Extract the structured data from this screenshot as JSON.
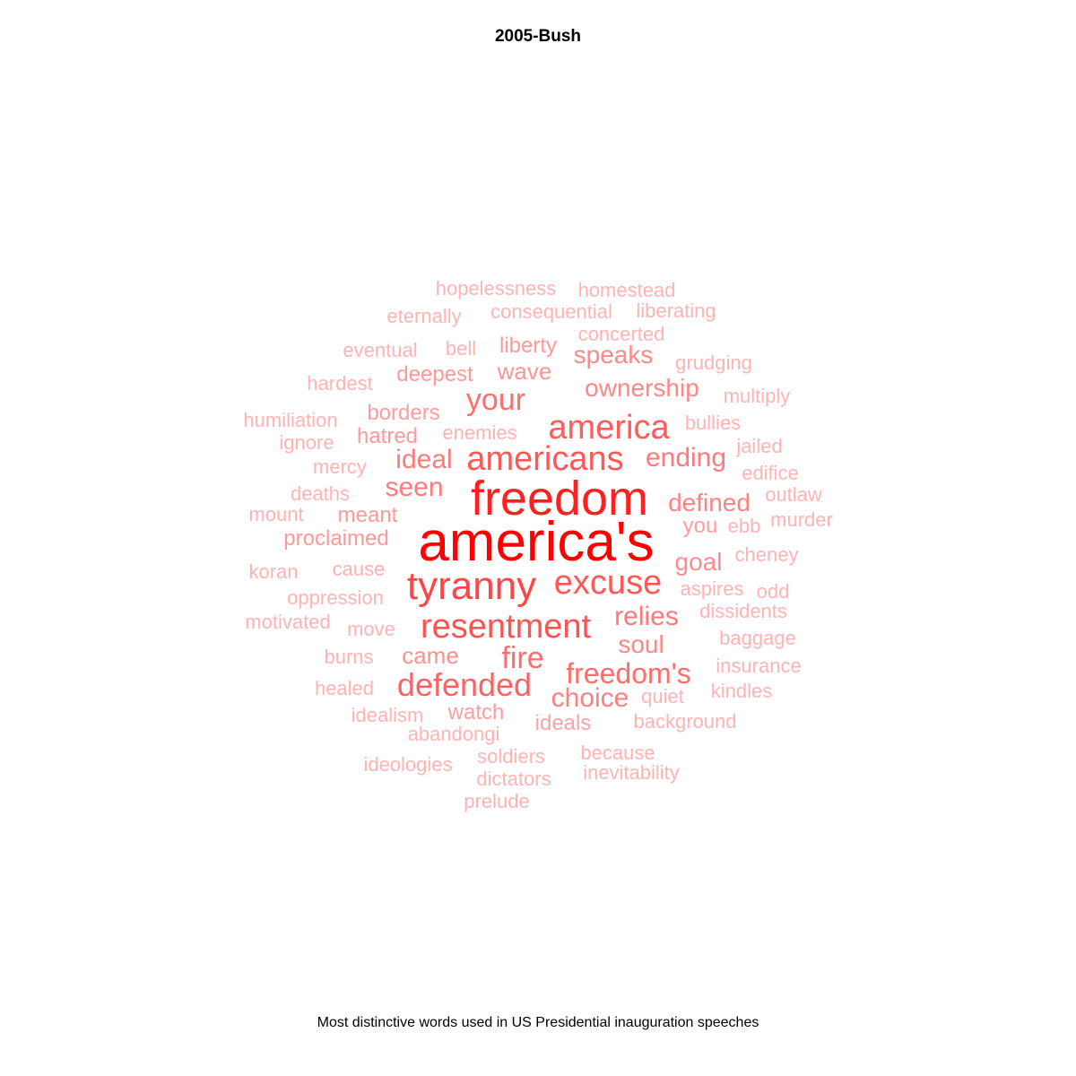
{
  "title": "2005-Bush",
  "caption": "Most distinctive words used in US Presidential inauguration speeches",
  "chart_data": {
    "type": "wordcloud",
    "title": "2005-Bush",
    "caption": "Most distinctive words used in US Presidential inauguration speeches",
    "color_scale": [
      "#ffb3b3",
      "#ff0000"
    ],
    "words": [
      {
        "text": "america's",
        "weight": 1.0
      },
      {
        "text": "freedom",
        "weight": 0.86
      },
      {
        "text": "tyranny",
        "weight": 0.68
      },
      {
        "text": "resentment",
        "weight": 0.62
      },
      {
        "text": "americans",
        "weight": 0.6
      },
      {
        "text": "excuse",
        "weight": 0.6
      },
      {
        "text": "america",
        "weight": 0.58
      },
      {
        "text": "defended",
        "weight": 0.55
      },
      {
        "text": "your",
        "weight": 0.5
      },
      {
        "text": "freedom's",
        "weight": 0.5
      },
      {
        "text": "fire",
        "weight": 0.5
      },
      {
        "text": "relies",
        "weight": 0.45
      },
      {
        "text": "ideal",
        "weight": 0.44
      },
      {
        "text": "ending",
        "weight": 0.44
      },
      {
        "text": "seen",
        "weight": 0.44
      },
      {
        "text": "choice",
        "weight": 0.42
      },
      {
        "text": "defined",
        "weight": 0.4
      },
      {
        "text": "ownership",
        "weight": 0.38
      },
      {
        "text": "speaks",
        "weight": 0.38
      },
      {
        "text": "soul",
        "weight": 0.38
      },
      {
        "text": "goal",
        "weight": 0.36
      },
      {
        "text": "came",
        "weight": 0.34
      },
      {
        "text": "wave",
        "weight": 0.32
      },
      {
        "text": "deepest",
        "weight": 0.3
      },
      {
        "text": "liberty",
        "weight": 0.3
      },
      {
        "text": "proclaimed",
        "weight": 0.3
      },
      {
        "text": "meant",
        "weight": 0.3
      },
      {
        "text": "hatred",
        "weight": 0.3
      },
      {
        "text": "borders",
        "weight": 0.28
      },
      {
        "text": "you",
        "weight": 0.28
      },
      {
        "text": "watch",
        "weight": 0.28
      },
      {
        "text": "ideals",
        "weight": 0.26
      },
      {
        "text": "hopelessness",
        "weight": 0.18
      },
      {
        "text": "homestead",
        "weight": 0.18
      },
      {
        "text": "eternally",
        "weight": 0.18
      },
      {
        "text": "consequential",
        "weight": 0.18
      },
      {
        "text": "liberating",
        "weight": 0.18
      },
      {
        "text": "concerted",
        "weight": 0.18
      },
      {
        "text": "eventual",
        "weight": 0.18
      },
      {
        "text": "bell",
        "weight": 0.18
      },
      {
        "text": "grudging",
        "weight": 0.18
      },
      {
        "text": "hardest",
        "weight": 0.18
      },
      {
        "text": "multiply",
        "weight": 0.18
      },
      {
        "text": "humiliation",
        "weight": 0.18
      },
      {
        "text": "bullies",
        "weight": 0.18
      },
      {
        "text": "ignore",
        "weight": 0.18
      },
      {
        "text": "enemies",
        "weight": 0.18
      },
      {
        "text": "jailed",
        "weight": 0.18
      },
      {
        "text": "mercy",
        "weight": 0.18
      },
      {
        "text": "edifice",
        "weight": 0.18
      },
      {
        "text": "deaths",
        "weight": 0.18
      },
      {
        "text": "outlaw",
        "weight": 0.18
      },
      {
        "text": "mount",
        "weight": 0.18
      },
      {
        "text": "ebb",
        "weight": 0.18
      },
      {
        "text": "murder",
        "weight": 0.18
      },
      {
        "text": "cheney",
        "weight": 0.18
      },
      {
        "text": "koran",
        "weight": 0.18
      },
      {
        "text": "cause",
        "weight": 0.2
      },
      {
        "text": "aspires",
        "weight": 0.18
      },
      {
        "text": "odd",
        "weight": 0.18
      },
      {
        "text": "oppression",
        "weight": 0.18
      },
      {
        "text": "dissidents",
        "weight": 0.18
      },
      {
        "text": "motivated",
        "weight": 0.18
      },
      {
        "text": "move",
        "weight": 0.18
      },
      {
        "text": "baggage",
        "weight": 0.18
      },
      {
        "text": "burns",
        "weight": 0.18
      },
      {
        "text": "insurance",
        "weight": 0.18
      },
      {
        "text": "healed",
        "weight": 0.18
      },
      {
        "text": "quiet",
        "weight": 0.18
      },
      {
        "text": "kindles",
        "weight": 0.18
      },
      {
        "text": "idealism",
        "weight": 0.18
      },
      {
        "text": "background",
        "weight": 0.18
      },
      {
        "text": "abandongi",
        "weight": 0.18
      },
      {
        "text": "soldiers",
        "weight": 0.18
      },
      {
        "text": "because",
        "weight": 0.18
      },
      {
        "text": "ideologies",
        "weight": 0.18
      },
      {
        "text": "dictators",
        "weight": 0.18
      },
      {
        "text": "inevitability",
        "weight": 0.18
      },
      {
        "text": "prelude",
        "weight": 0.18
      }
    ]
  }
}
